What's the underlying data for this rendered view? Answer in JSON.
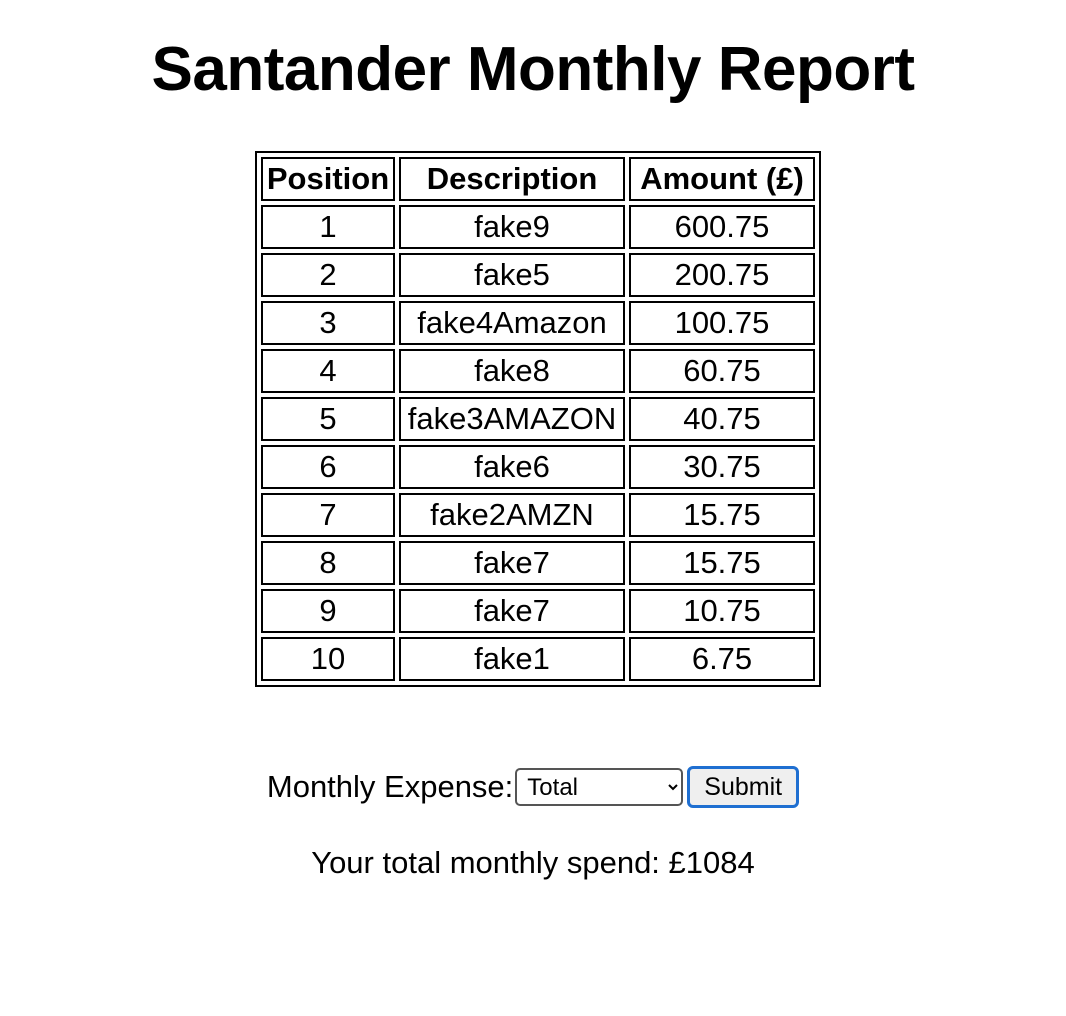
{
  "page": {
    "title": "Santander Monthly Report"
  },
  "table": {
    "headers": [
      "Position",
      "Description",
      "Amount (£)"
    ],
    "rows": [
      {
        "position": "1",
        "description": "fake9",
        "amount": "600.75"
      },
      {
        "position": "2",
        "description": "fake5",
        "amount": "200.75"
      },
      {
        "position": "3",
        "description": "fake4Amazon",
        "amount": "100.75"
      },
      {
        "position": "4",
        "description": "fake8",
        "amount": "60.75"
      },
      {
        "position": "5",
        "description": "fake3AMAZON",
        "amount": "40.75"
      },
      {
        "position": "6",
        "description": "fake6",
        "amount": "30.75"
      },
      {
        "position": "7",
        "description": "fake2AMZN",
        "amount": "15.75"
      },
      {
        "position": "8",
        "description": "fake7",
        "amount": "15.75"
      },
      {
        "position": "9",
        "description": "fake7",
        "amount": "10.75"
      },
      {
        "position": "10",
        "description": "fake1",
        "amount": "6.75"
      }
    ]
  },
  "form": {
    "label": "Monthly Expense:",
    "selected_option": "Total",
    "submit_label": "Submit"
  },
  "result": {
    "text": "Your total monthly spend: £1084"
  },
  "colors": {
    "submit_focus_border": "#1f6fd1"
  }
}
